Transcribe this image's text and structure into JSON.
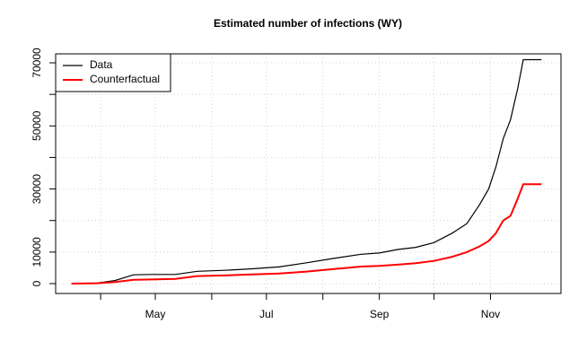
{
  "chart_data": {
    "type": "line",
    "title": "Estimated number of infections (WY)",
    "x": [
      76,
      90,
      100,
      110,
      120,
      133,
      145,
      160,
      175,
      190,
      205,
      220,
      235,
      245,
      255,
      265,
      275,
      285,
      293,
      300,
      305,
      309,
      313,
      317,
      321,
      324,
      334
    ],
    "series": [
      {
        "name": "Data",
        "color": "#000000",
        "values": [
          0,
          200,
          1000,
          2800,
          2900,
          2900,
          3900,
          4200,
          4700,
          5300,
          6600,
          8000,
          9300,
          9700,
          10800,
          11500,
          13000,
          16000,
          19000,
          25000,
          30000,
          37000,
          46000,
          52000,
          62000,
          71000,
          71000
        ]
      },
      {
        "name": "Counterfactual",
        "color": "#ff0000",
        "values": [
          0,
          100,
          500,
          1200,
          1300,
          1500,
          2400,
          2600,
          2900,
          3200,
          3800,
          4600,
          5400,
          5600,
          6000,
          6500,
          7200,
          8500,
          10000,
          11800,
          13500,
          16000,
          20000,
          21500,
          27000,
          31500,
          31500
        ]
      }
    ],
    "xlim": [
      67.3,
      344.7
    ],
    "xticks": [
      {
        "value": 92,
        "label": null
      },
      {
        "value": 122,
        "label": "May"
      },
      {
        "value": 153,
        "label": null
      },
      {
        "value": 183,
        "label": "Jul"
      },
      {
        "value": 214,
        "label": null
      },
      {
        "value": 245,
        "label": "Sep"
      },
      {
        "value": 275,
        "label": null
      },
      {
        "value": 306,
        "label": "Nov"
      }
    ],
    "ylim": [
      -3130,
      72850
    ],
    "yticks": [
      0,
      10000,
      {
        "value": 20000,
        "label": null
      },
      30000,
      {
        "value": 40000,
        "label": null
      },
      50000,
      {
        "value": 60000,
        "label": null
      },
      70000
    ],
    "grid": true,
    "legend": "top-left"
  }
}
